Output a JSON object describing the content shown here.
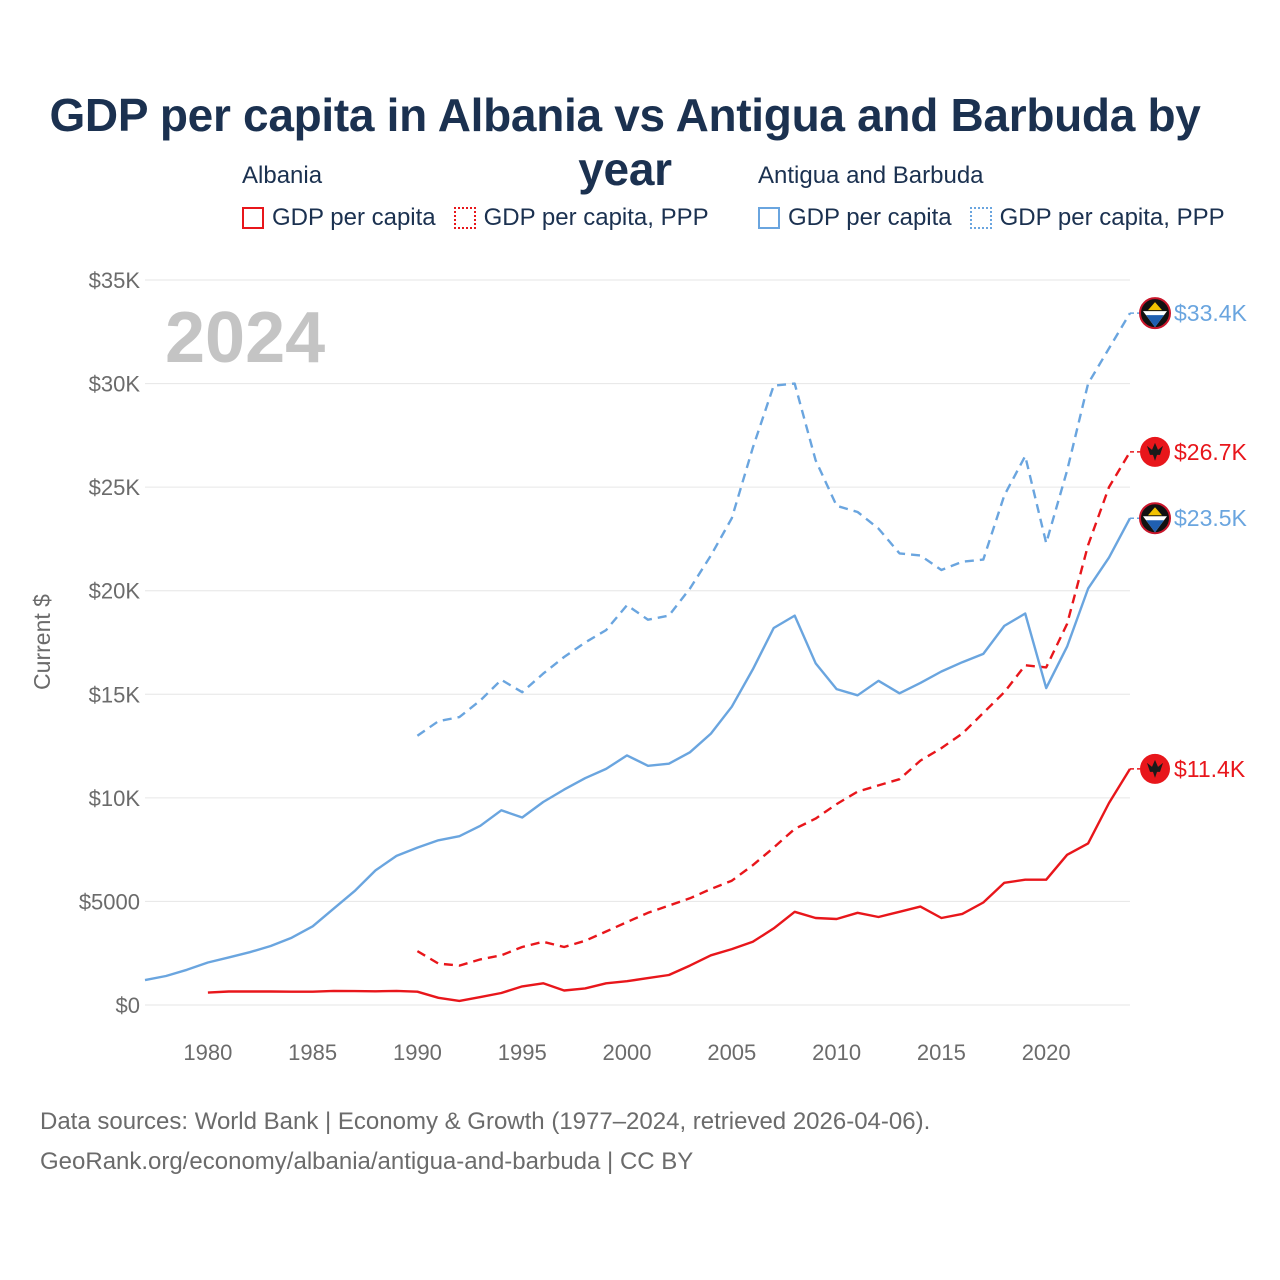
{
  "title": "GDP per capita in Albania vs Antigua and Barbuda by year",
  "legend": {
    "groups": [
      {
        "name": "Albania",
        "items": [
          {
            "label": "GDP per capita",
            "style": "solid",
            "color": "#e8161b"
          },
          {
            "label": "GDP per capita, PPP",
            "style": "dotted",
            "color": "#e8161b"
          }
        ]
      },
      {
        "name": "Antigua and Barbuda",
        "items": [
          {
            "label": "GDP per capita",
            "style": "solid",
            "color": "#6aa5df"
          },
          {
            "label": "GDP per capita, PPP",
            "style": "dotted",
            "color": "#6aa5df"
          }
        ]
      }
    ]
  },
  "chart_data": {
    "type": "line",
    "title": "GDP per capita in Albania vs Antigua and Barbuda by year",
    "year_watermark": "2024",
    "ylabel": "Current $",
    "xlabel": "",
    "xlim": [
      1977,
      2024
    ],
    "ylim": [
      0,
      35000
    ],
    "x_ticks": [
      1980,
      1985,
      1990,
      1995,
      2000,
      2005,
      2010,
      2015,
      2020
    ],
    "y_ticks": [
      0,
      5000,
      10000,
      15000,
      20000,
      25000,
      30000,
      35000
    ],
    "y_tick_labels": [
      "$0",
      "$5000",
      "$10K",
      "$15K",
      "$20K",
      "$25K",
      "$30K",
      "$35K"
    ],
    "grid": true,
    "series": [
      {
        "name": "Antigua and Barbuda GDP per capita, PPP",
        "country": "Antigua and Barbuda",
        "color": "#6aa5df",
        "dash": true,
        "end_label": "$33.4K",
        "points": [
          [
            1990,
            13000
          ],
          [
            1991,
            13700
          ],
          [
            1992,
            13900
          ],
          [
            1993,
            14700
          ],
          [
            1994,
            15700
          ],
          [
            1995,
            15100
          ],
          [
            1996,
            16000
          ],
          [
            1997,
            16800
          ],
          [
            1998,
            17500
          ],
          [
            1999,
            18100
          ],
          [
            2000,
            19300
          ],
          [
            2001,
            18600
          ],
          [
            2002,
            18800
          ],
          [
            2003,
            20100
          ],
          [
            2004,
            21700
          ],
          [
            2005,
            23500
          ],
          [
            2006,
            26900
          ],
          [
            2007,
            29900
          ],
          [
            2008,
            30000
          ],
          [
            2009,
            26300
          ],
          [
            2010,
            24100
          ],
          [
            2011,
            23800
          ],
          [
            2012,
            23000
          ],
          [
            2013,
            21800
          ],
          [
            2014,
            21700
          ],
          [
            2015,
            21000
          ],
          [
            2016,
            21400
          ],
          [
            2017,
            21500
          ],
          [
            2018,
            24600
          ],
          [
            2019,
            26500
          ],
          [
            2020,
            22300
          ],
          [
            2021,
            25800
          ],
          [
            2022,
            30000
          ],
          [
            2023,
            31700
          ],
          [
            2024,
            33400
          ]
        ]
      },
      {
        "name": "Albania GDP per capita, PPP",
        "country": "Albania",
        "color": "#e8161b",
        "dash": true,
        "end_label": "$26.7K",
        "points": [
          [
            1990,
            2600
          ],
          [
            1991,
            2000
          ],
          [
            1992,
            1900
          ],
          [
            1993,
            2200
          ],
          [
            1994,
            2400
          ],
          [
            1995,
            2800
          ],
          [
            1996,
            3050
          ],
          [
            1997,
            2800
          ],
          [
            1998,
            3100
          ],
          [
            1999,
            3550
          ],
          [
            2000,
            4000
          ],
          [
            2001,
            4450
          ],
          [
            2002,
            4800
          ],
          [
            2003,
            5150
          ],
          [
            2004,
            5600
          ],
          [
            2005,
            6000
          ],
          [
            2006,
            6750
          ],
          [
            2007,
            7600
          ],
          [
            2008,
            8500
          ],
          [
            2009,
            9000
          ],
          [
            2010,
            9700
          ],
          [
            2011,
            10300
          ],
          [
            2012,
            10600
          ],
          [
            2013,
            10900
          ],
          [
            2014,
            11800
          ],
          [
            2015,
            12400
          ],
          [
            2016,
            13100
          ],
          [
            2017,
            14100
          ],
          [
            2018,
            15100
          ],
          [
            2019,
            16400
          ],
          [
            2020,
            16300
          ],
          [
            2021,
            18400
          ],
          [
            2022,
            22200
          ],
          [
            2023,
            25000
          ],
          [
            2024,
            26700
          ]
        ]
      },
      {
        "name": "Antigua and Barbuda GDP per capita",
        "country": "Antigua and Barbuda",
        "color": "#6aa5df",
        "dash": false,
        "end_label": "$23.5K",
        "points": [
          [
            1977,
            1200
          ],
          [
            1978,
            1400
          ],
          [
            1979,
            1700
          ],
          [
            1980,
            2050
          ],
          [
            1981,
            2300
          ],
          [
            1982,
            2550
          ],
          [
            1983,
            2850
          ],
          [
            1984,
            3250
          ],
          [
            1985,
            3800
          ],
          [
            1986,
            4650
          ],
          [
            1987,
            5500
          ],
          [
            1988,
            6500
          ],
          [
            1989,
            7200
          ],
          [
            1990,
            7600
          ],
          [
            1991,
            7950
          ],
          [
            1992,
            8150
          ],
          [
            1993,
            8650
          ],
          [
            1994,
            9400
          ],
          [
            1995,
            9050
          ],
          [
            1996,
            9800
          ],
          [
            1997,
            10400
          ],
          [
            1998,
            10950
          ],
          [
            1999,
            11400
          ],
          [
            2000,
            12050
          ],
          [
            2001,
            11550
          ],
          [
            2002,
            11650
          ],
          [
            2003,
            12200
          ],
          [
            2004,
            13100
          ],
          [
            2005,
            14400
          ],
          [
            2006,
            16200
          ],
          [
            2007,
            18200
          ],
          [
            2008,
            18800
          ],
          [
            2009,
            16500
          ],
          [
            2010,
            15250
          ],
          [
            2011,
            14950
          ],
          [
            2012,
            15650
          ],
          [
            2013,
            15050
          ],
          [
            2014,
            15550
          ],
          [
            2015,
            16100
          ],
          [
            2016,
            16550
          ],
          [
            2017,
            16950
          ],
          [
            2018,
            18300
          ],
          [
            2019,
            18900
          ],
          [
            2020,
            15300
          ],
          [
            2021,
            17300
          ],
          [
            2022,
            20100
          ],
          [
            2023,
            21600
          ],
          [
            2024,
            23500
          ]
        ]
      },
      {
        "name": "Albania GDP per capita",
        "country": "Albania",
        "color": "#e8161b",
        "dash": false,
        "end_label": "$11.4K",
        "points": [
          [
            1980,
            600
          ],
          [
            1981,
            650
          ],
          [
            1982,
            650
          ],
          [
            1983,
            650
          ],
          [
            1984,
            640
          ],
          [
            1985,
            640
          ],
          [
            1986,
            680
          ],
          [
            1987,
            670
          ],
          [
            1988,
            660
          ],
          [
            1989,
            680
          ],
          [
            1990,
            640
          ],
          [
            1991,
            350
          ],
          [
            1992,
            200
          ],
          [
            1993,
            380
          ],
          [
            1994,
            580
          ],
          [
            1995,
            900
          ],
          [
            1996,
            1050
          ],
          [
            1997,
            700
          ],
          [
            1998,
            800
          ],
          [
            1999,
            1050
          ],
          [
            2000,
            1150
          ],
          [
            2001,
            1300
          ],
          [
            2002,
            1450
          ],
          [
            2003,
            1900
          ],
          [
            2004,
            2400
          ],
          [
            2005,
            2700
          ],
          [
            2006,
            3050
          ],
          [
            2007,
            3700
          ],
          [
            2008,
            4500
          ],
          [
            2009,
            4200
          ],
          [
            2010,
            4150
          ],
          [
            2011,
            4450
          ],
          [
            2012,
            4250
          ],
          [
            2013,
            4500
          ],
          [
            2014,
            4750
          ],
          [
            2015,
            4200
          ],
          [
            2016,
            4400
          ],
          [
            2017,
            4950
          ],
          [
            2018,
            5900
          ],
          [
            2019,
            6050
          ],
          [
            2020,
            6050
          ],
          [
            2021,
            7250
          ],
          [
            2022,
            7800
          ],
          [
            2023,
            9750
          ],
          [
            2024,
            11400
          ]
        ]
      }
    ]
  },
  "footer": {
    "line1": "Data sources: World Bank | Economy & Growth (1977–2024, retrieved 2026-04-06).",
    "line2": "GeoRank.org/economy/albania/antigua-and-barbuda | CC BY"
  }
}
